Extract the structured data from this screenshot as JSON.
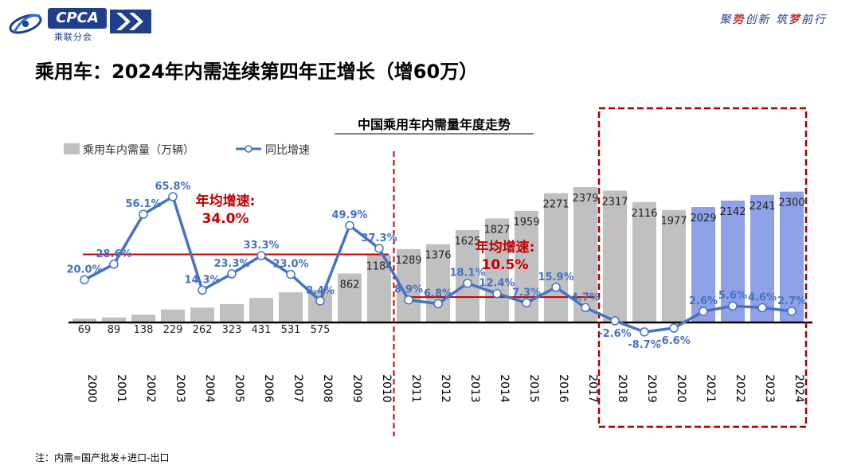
{
  "header": {
    "logo_text": "CPCA",
    "logo_subtitle": "乘联分会",
    "slogan_parts": [
      "聚",
      "势",
      "创新 ",
      "筑",
      "梦",
      "前行"
    ]
  },
  "page_title": "乘用车：2024年内需连续第四年正增长（增60万）",
  "footnote": "注：内需=国产批发+进口-出口",
  "colors": {
    "bar_gray": "#c0c0c0",
    "bar_blue": "#8fa1e6",
    "line_blue": "#4472c4",
    "avg_line_red": "#c00000",
    "divider_red": "#c00000",
    "highlight_box_red": "#a00000"
  },
  "chart_data": {
    "type": "bar",
    "title": "中国乘用车内需量年度走势",
    "categories": [
      "2000",
      "2001",
      "2002",
      "2003",
      "2004",
      "2005",
      "2006",
      "2007",
      "2008",
      "2009",
      "2010",
      "2011",
      "2012",
      "2013",
      "2014",
      "2015",
      "2016",
      "2017",
      "2018",
      "2019",
      "2020",
      "2021",
      "2022",
      "2023",
      "2024"
    ],
    "series": [
      {
        "name": "乘用车内需量（万辆）",
        "type": "bar",
        "values": [
          69,
          89,
          138,
          229,
          262,
          323,
          431,
          531,
          575,
          862,
          1184,
          1289,
          1376,
          1625,
          1827,
          1959,
          2271,
          2379,
          2317,
          2116,
          1977,
          2029,
          2142,
          2241,
          2300
        ],
        "labels": [
          "69",
          "89",
          "138",
          "229",
          "262",
          "323",
          "431",
          "531",
          "575",
          "862",
          "1184",
          "1289",
          "1376",
          "1625",
          "1827",
          "1959",
          "2271",
          "2379",
          "2317",
          "2116",
          "1977",
          "2029",
          "2142",
          "2241",
          "2300"
        ]
      },
      {
        "name": "同比增速",
        "type": "line",
        "values": [
          20.0,
          28.6,
          56.1,
          65.8,
          14.3,
          23.3,
          33.3,
          23.0,
          8.4,
          49.9,
          37.3,
          8.9,
          6.8,
          18.1,
          12.4,
          7.3,
          15.9,
          4.7,
          -2.6,
          -8.7,
          -6.6,
          2.6,
          5.6,
          4.6,
          2.7
        ],
        "labels": [
          "20.0%",
          "28.6%",
          "56.1%",
          "65.8%",
          "14.3%",
          "23.3%",
          "33.3%",
          "23.0%",
          "8.4%",
          "49.9%",
          "37.3%",
          "8.9%",
          "6.8%",
          "18.1%",
          "12.4%",
          "7.3%",
          "15.9%",
          "4.7%",
          "-2.6%",
          "-8.7%",
          "-6.6%",
          "2.6%",
          "5.6%",
          "4.6%",
          "2.7%"
        ]
      }
    ],
    "annotations": [
      {
        "label": "年均增速:",
        "value": "34.0%",
        "from": "2000",
        "to": "2010",
        "avg_rate": 34.0
      },
      {
        "label": "年均增速:",
        "value": "10.5%",
        "from": "2011",
        "to": "2017",
        "avg_rate": 10.5
      }
    ],
    "divider_after": "2010",
    "highlight_range": [
      "2018",
      "2024"
    ],
    "blue_bars_from": "2021",
    "legend_position": "top-left",
    "grid": false
  }
}
